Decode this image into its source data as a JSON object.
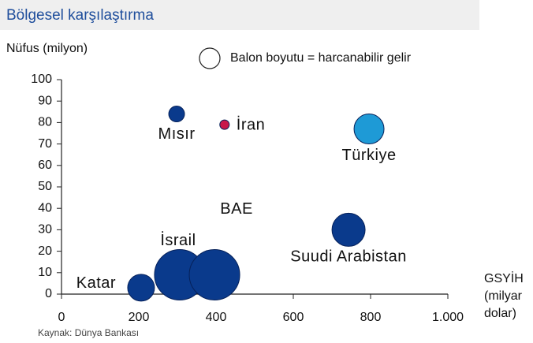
{
  "chart_data": {
    "type": "bubble",
    "title": "Bölgesel karşılaştırma",
    "y_label": "Nüfus (milyon)",
    "x_label": [
      "GSYİH",
      "(milyar",
      "dolar)"
    ],
    "legend": "Balon boyutu = harcanabilir gelir",
    "source": "Kaynak:  Dünya Bankası",
    "labels": [
      "Mısır",
      "İran",
      "Türkiye",
      "Suudi Arabistan",
      "Katar",
      "İsrail",
      "BAE"
    ],
    "x": [
      298,
      422,
      796,
      743,
      206,
      306,
      396
    ],
    "values": [
      84,
      79,
      77,
      30,
      3,
      9,
      9
    ],
    "sizes": [
      100,
      36,
      361,
      441,
      289,
      1024,
      1024
    ],
    "colors": [
      "#0a3a8c",
      "#c8174a",
      "#1e9ad6",
      "#0a3a8c",
      "#0a3a8c",
      "#0a3a8c",
      "#0a3a8c"
    ],
    "xlim": [
      0,
      1000
    ],
    "xticks": [
      0,
      200,
      400,
      600,
      800,
      {
        "value": 1000,
        "label": "1.000"
      }
    ],
    "ylim": [
      0,
      100
    ],
    "yticks": [
      0,
      10,
      20,
      30,
      40,
      50,
      60,
      70,
      80,
      90,
      100
    ]
  }
}
